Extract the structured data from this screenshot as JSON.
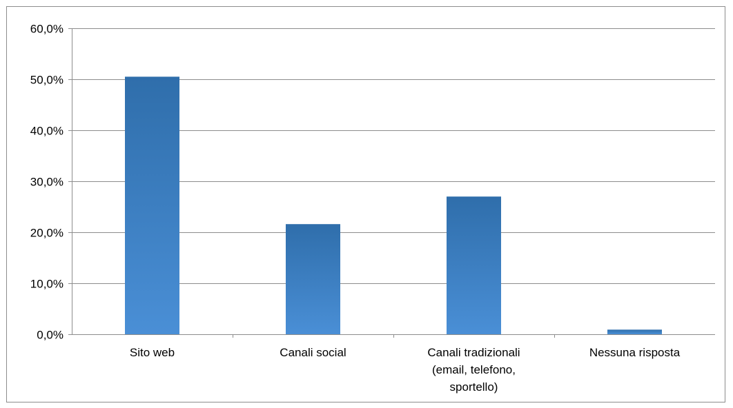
{
  "chart_data": {
    "type": "bar",
    "title": "",
    "xlabel": "",
    "ylabel": "",
    "categories": [
      [
        "Sito web"
      ],
      [
        "Canali social"
      ],
      [
        "Canali tradizionali",
        "(email, telefono,",
        "sportello)"
      ],
      [
        "Nessuna risposta"
      ]
    ],
    "values": [
      50.5,
      21.6,
      27.0,
      0.9
    ],
    "ylim": [
      0,
      60
    ],
    "yticks": [
      0,
      10,
      20,
      30,
      40,
      50,
      60
    ],
    "ytick_labels": [
      "0,0%",
      "10,0%",
      "20,0%",
      "30,0%",
      "40,0%",
      "50,0%",
      "60,0%"
    ],
    "grid": true,
    "legend": "none",
    "colors": {
      "bar_top": "#2f6eab",
      "bar_bottom": "#4a8fd6",
      "grid": "#8c8c8c",
      "axis": "#8c8c8c"
    }
  }
}
